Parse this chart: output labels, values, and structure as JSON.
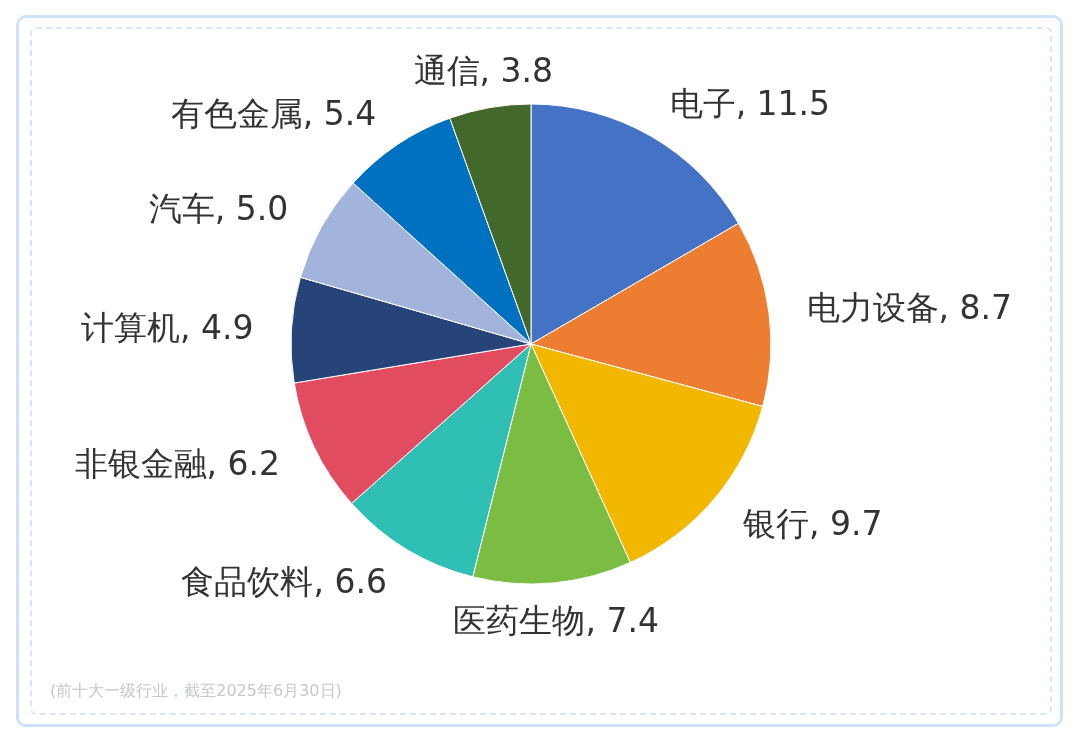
{
  "chart_data": {
    "type": "pie",
    "categories": [
      "电子",
      "电力设备",
      "银行",
      "医药生物",
      "食品饮料",
      "非银金融",
      "计算机",
      "汽车",
      "有色金属",
      "通信"
    ],
    "values": [
      11.5,
      8.7,
      9.7,
      7.4,
      6.6,
      6.2,
      4.9,
      5.0,
      5.4,
      3.8
    ],
    "colors": [
      "#4472c4",
      "#ed7d31",
      "#f2b800",
      "#7abd42",
      "#2fbfb5",
      "#e24c60",
      "#264478",
      "#a2b4dc",
      "#0070c0",
      "#43682b"
    ],
    "value_labels": [
      ", 11.5",
      ", 8.7",
      ", 9.7",
      ", 7.4",
      ", 6.6",
      ", 6.2",
      ", 4.9",
      ", 5.0",
      ", 5.4",
      ", 3.8"
    ],
    "annotations": [
      "(前十大一级行业，截至2025年6月30日)"
    ]
  }
}
